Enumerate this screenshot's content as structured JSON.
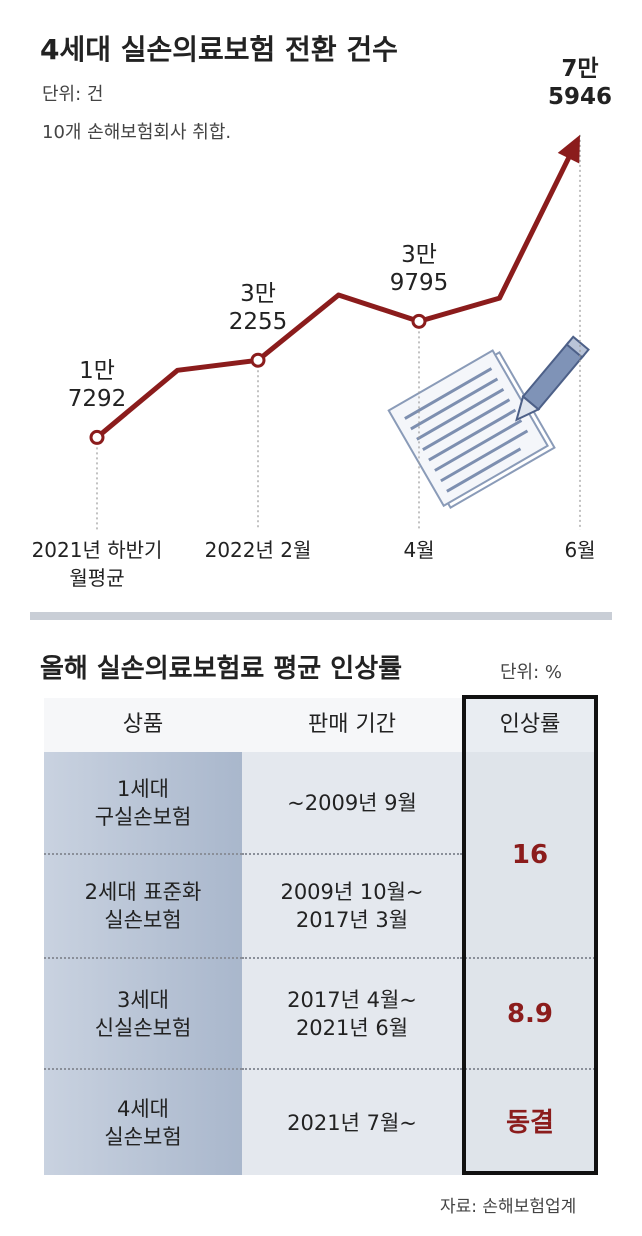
{
  "chart_data": {
    "type": "line",
    "title": "4세대 실손의료보험 전환 건수",
    "subtitle": "단위: 건",
    "note": "10개 손해보험회사 취합.",
    "categories": [
      "2021년 하반기\n월평균",
      null,
      "2022년 2월",
      null,
      "4월",
      null,
      "6월"
    ],
    "values": [
      17292,
      30300,
      32255,
      44900,
      39795,
      44300,
      75946
    ],
    "value_labels": [
      "1만\n7292",
      null,
      "3만\n2255",
      null,
      "3만\n9795",
      null,
      "7만\n5946"
    ],
    "color": "#8b1c1c",
    "ylim": [
      10000,
      80000
    ]
  },
  "table": {
    "title": "올해 실손의료보험료 평균 인상률",
    "unit": "단위: %",
    "headers": [
      "상품",
      "판매 기간",
      "인상률"
    ],
    "rows": [
      [
        "1세대\n구실손보험",
        "~2009년 9월"
      ],
      [
        "2세대 표준화\n실손보험",
        "2009년 10월~\n2017년 3월"
      ],
      [
        "3세대\n신실손보험",
        "2017년 4월~\n2021년 6월"
      ],
      [
        "4세대\n실손보험",
        "2021년 7월~"
      ]
    ],
    "rates": [
      "16",
      null,
      "8.9",
      "동결"
    ],
    "source": "자료: 손해보험업계"
  }
}
